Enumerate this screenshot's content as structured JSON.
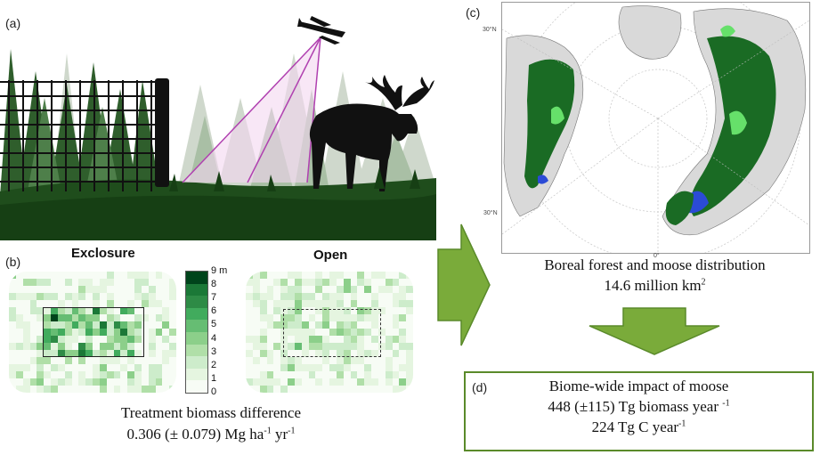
{
  "panels": {
    "a": {
      "label": "(a)"
    },
    "b": {
      "label": "(b)",
      "exclosure_title": "Exclosure",
      "open_title": "Open",
      "caption_line1": "Treatment biomass difference",
      "caption_line2_prefix": "0.306 (± 0.079) Mg ha",
      "caption_sup1": "-1",
      "caption_mid": " yr",
      "caption_sup2": "-1"
    },
    "c": {
      "label": "(c)",
      "lat_top": "30°N",
      "lat_bottom": "30°N",
      "lon_bottom": "0°",
      "caption_line1": "Boreal forest and moose distribution",
      "caption_line2": "14.6 million km",
      "caption_sup": "2"
    },
    "d": {
      "label": "(d)",
      "line1": "Biome-wide impact of moose",
      "line2_prefix": "448 (±115) Tg biomass year ",
      "line2_sup": "-1",
      "line3_prefix": "224 Tg C year",
      "line3_sup": "-1"
    }
  },
  "legend": {
    "ticks": [
      "9 m",
      "8",
      "7",
      "6",
      "5",
      "4",
      "3",
      "2",
      "1",
      "0"
    ],
    "colors": [
      "#00441b",
      "#1b7837",
      "#2e8b46",
      "#41ab5d",
      "#66bd73",
      "#8ccf8a",
      "#b0dfa8",
      "#cdeccb",
      "#e5f5e0",
      "#f7fcf5"
    ]
  },
  "colors": {
    "arrow": "#7aab3a",
    "arrow_dark": "#5a8a2a",
    "forest": "#0b5e1e",
    "box_border": "#5a8a2a"
  }
}
